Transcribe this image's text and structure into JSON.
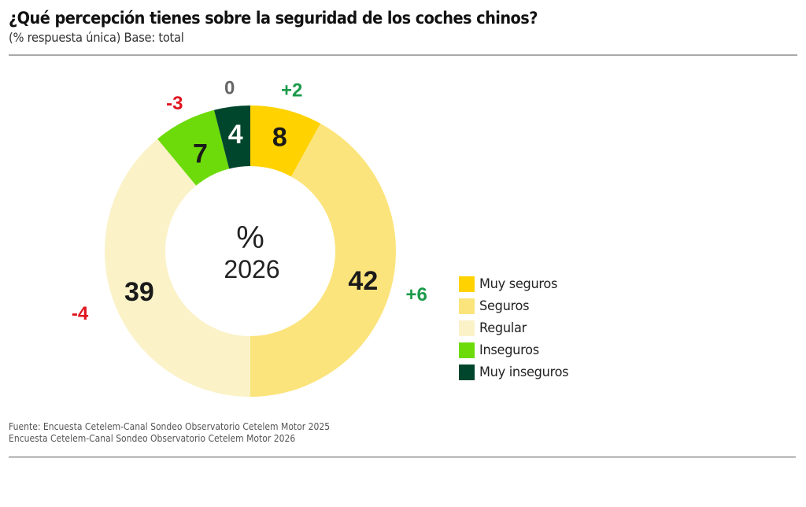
{
  "header": {
    "title": "¿Qué percepción tienes sobre la seguridad de los coches chinos?",
    "subtitle": "(% respuesta única) Base: total"
  },
  "center_label": {
    "unit": "%",
    "year": "2026"
  },
  "chart_data": {
    "type": "pie",
    "variant": "donut",
    "title": "¿Qué percepción tienes sobre la seguridad de los coches chinos?",
    "subtitle": "(% respuesta única) Base: total",
    "center_text": [
      "%",
      "2026"
    ],
    "slices": [
      {
        "label": "Muy seguros",
        "value": 8,
        "change": "+2",
        "color": "#FFD200",
        "value_color": "#1a1a1a",
        "change_color": "#1a9a4a"
      },
      {
        "label": "Seguros",
        "value": 42,
        "change": "+6",
        "color": "#FCE47C",
        "value_color": "#1a1a1a",
        "change_color": "#1a9a4a"
      },
      {
        "label": "Regular",
        "value": 39,
        "change": "-4",
        "color": "#FBF2C8",
        "value_color": "#1a1a1a",
        "change_color": "#e0141e"
      },
      {
        "label": "Inseguros",
        "value": 7,
        "change": "-3",
        "color": "#6DDB0A",
        "value_color": "#1a1a1a",
        "change_color": "#e0141e"
      },
      {
        "label": "Muy inseguros",
        "value": 4,
        "change": "0",
        "color": "#00462D",
        "value_color": "#ffffff",
        "change_color": "#666666"
      }
    ],
    "start_angle": "top",
    "direction": "clockwise",
    "legend_position": "right"
  },
  "legend": {
    "items": [
      {
        "label": "Muy seguros",
        "color": "#FFD200"
      },
      {
        "label": "Seguros",
        "color": "#FCE47C"
      },
      {
        "label": "Regular",
        "color": "#FBF2C8"
      },
      {
        "label": "Inseguros",
        "color": "#6DDB0A"
      },
      {
        "label": "Muy inseguros",
        "color": "#00462D"
      }
    ]
  },
  "source": {
    "line1": "Fuente: Encuesta Cetelem-Canal Sondeo Observatorio Cetelem Motor 2025",
    "line2": "Encuesta Cetelem-Canal Sondeo Observatorio Cetelem Motor 2026"
  }
}
